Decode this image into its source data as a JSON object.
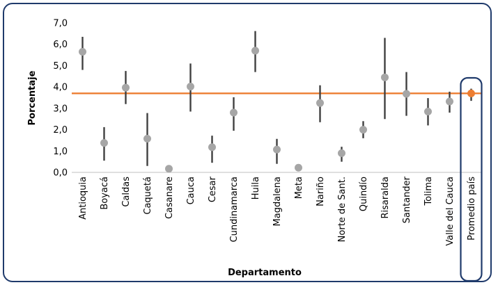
{
  "chart_data": {
    "type": "scatter",
    "subtype": "point-with-range (error bars) plus reference line",
    "xlabel": "Departamento",
    "ylabel": "Porcentaje",
    "ylim": [
      0,
      7
    ],
    "yticks": [
      "0,0",
      "1,0",
      "2,0",
      "3,0",
      "4,0",
      "5,0",
      "6,0",
      "7,0"
    ],
    "grid": false,
    "reference_line": {
      "value": 3.7,
      "color": "#ED7D31"
    },
    "colors": {
      "point": "#A6A6A6",
      "range_bar": "#404040",
      "highlight_point": "#ED7D31",
      "highlight_box": "#1F3A6B",
      "frame": "#1F3A6B"
    },
    "categories": [
      "Antioquia",
      "Boyacá",
      "Caldas",
      "Caquetá",
      "Casanare",
      "Cauca",
      "Cesar",
      "Cundinamarca",
      "Huila",
      "Magdalena",
      "Meta",
      "Nariño",
      "Norte de Sant.",
      "Quindío",
      "Risaralda",
      "Santander",
      "Tolima",
      "Valle del Cauca",
      "Promedio país"
    ],
    "values": [
      5.65,
      1.38,
      3.97,
      1.58,
      0.17,
      4.02,
      1.18,
      2.8,
      5.7,
      1.07,
      0.22,
      3.25,
      0.9,
      2.0,
      4.45,
      3.68,
      2.85,
      3.32,
      3.7
    ],
    "lower": [
      4.8,
      0.55,
      3.2,
      0.3,
      null,
      2.85,
      0.45,
      1.95,
      4.7,
      0.4,
      null,
      2.35,
      0.5,
      1.6,
      2.5,
      2.65,
      2.2,
      2.8,
      3.35
    ],
    "upper": [
      6.35,
      2.12,
      4.75,
      2.78,
      null,
      5.1,
      1.72,
      3.52,
      6.62,
      1.57,
      null,
      4.08,
      1.2,
      2.4,
      6.3,
      4.7,
      3.48,
      3.78,
      3.92
    ],
    "highlighted_category": "Promedio país"
  }
}
